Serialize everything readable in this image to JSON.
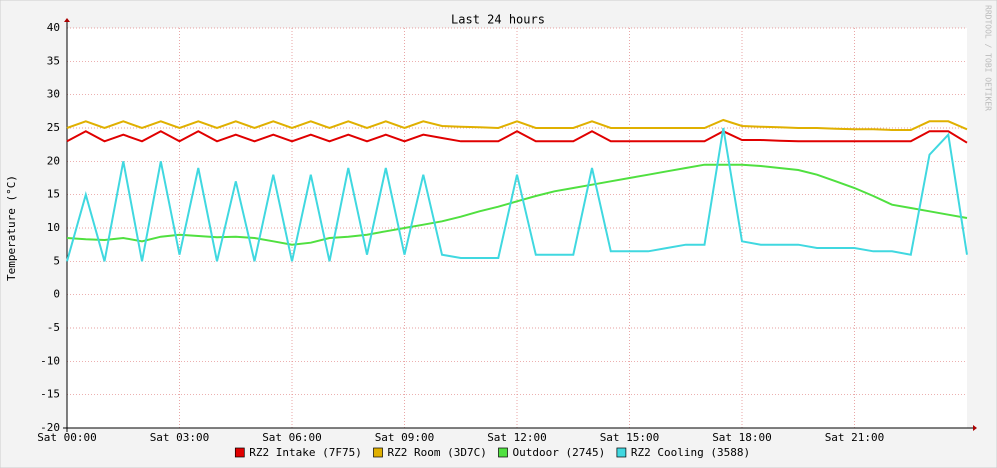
{
  "chart_data": {
    "type": "line",
    "title": "Last 24 hours",
    "y_label": "Temperature (°C)",
    "watermark": "RRDTOOL / TOBI OETIKER",
    "x": [
      0,
      0.5,
      1,
      1.5,
      2,
      2.5,
      3,
      3.5,
      4,
      4.5,
      5,
      5.5,
      6,
      6.5,
      7,
      7.5,
      8,
      8.5,
      9,
      9.5,
      10,
      10.5,
      11,
      11.5,
      12,
      12.5,
      13,
      13.5,
      14,
      14.5,
      15,
      15.5,
      16,
      16.5,
      17,
      17.5,
      18,
      18.5,
      19,
      19.5,
      20,
      20.5,
      21,
      21.5,
      22,
      22.5,
      23,
      23.5,
      24
    ],
    "xlim": [
      0,
      24
    ],
    "xticks": [
      {
        "value": 0,
        "label": "Sat 00:00"
      },
      {
        "value": 3,
        "label": "Sat 03:00"
      },
      {
        "value": 6,
        "label": "Sat 06:00"
      },
      {
        "value": 9,
        "label": "Sat 09:00"
      },
      {
        "value": 12,
        "label": "Sat 12:00"
      },
      {
        "value": 15,
        "label": "Sat 15:00"
      },
      {
        "value": 18,
        "label": "Sat 18:00"
      },
      {
        "value": 21,
        "label": "Sat 21:00"
      }
    ],
    "ylim": [
      -20,
      40
    ],
    "yticks": [
      -20,
      -15,
      -10,
      -5,
      0,
      5,
      10,
      15,
      20,
      25,
      30,
      35,
      40
    ],
    "grid": true,
    "series": [
      {
        "name": "RZ2 Intake (7F75)",
        "color": "#e00000",
        "values": [
          23,
          24.5,
          23,
          24,
          23,
          24.5,
          23,
          24.5,
          23,
          24,
          23,
          24,
          23,
          24,
          23,
          24,
          23,
          24,
          23,
          24,
          23.5,
          23,
          23,
          23,
          24.5,
          23,
          23,
          23,
          24.5,
          23,
          23,
          23,
          23,
          23,
          23,
          24.5,
          23.2,
          23.2,
          23.1,
          23,
          23,
          23,
          23,
          23,
          23,
          23,
          24.5,
          24.5,
          22.8
        ]
      },
      {
        "name": "RZ2 Room (3D7C)",
        "color": "#e0b000",
        "values": [
          25,
          26,
          25,
          26,
          25,
          26,
          25,
          26,
          25,
          26,
          25,
          26,
          25,
          26,
          25,
          26,
          25,
          26,
          25,
          26,
          25.3,
          25.2,
          25.1,
          25,
          26,
          25,
          25,
          25,
          26,
          25,
          25,
          25,
          25,
          25,
          25,
          26.2,
          25.3,
          25.2,
          25.1,
          25,
          25,
          24.9,
          24.8,
          24.8,
          24.7,
          24.7,
          26,
          26,
          24.8
        ]
      },
      {
        "name": "Outdoor (2745)",
        "color": "#50e040",
        "values": [
          8.5,
          8.3,
          8.2,
          8.5,
          8,
          8.7,
          9,
          8.8,
          8.6,
          8.7,
          8.5,
          8,
          7.5,
          7.8,
          8.5,
          8.7,
          9,
          9.5,
          10,
          10.5,
          11,
          11.7,
          12.5,
          13.2,
          14,
          14.8,
          15.5,
          16,
          16.5,
          17,
          17.5,
          18,
          18.5,
          19,
          19.5,
          19.5,
          19.5,
          19.3,
          19,
          18.7,
          18,
          17,
          16,
          14.8,
          13.5,
          13,
          12.5,
          12,
          11.5
        ]
      },
      {
        "name": "RZ2 Cooling (3588)",
        "color": "#40d8e0",
        "values": [
          5,
          15,
          5,
          20,
          5,
          20,
          6,
          19,
          5,
          17,
          5,
          18,
          5,
          18,
          5,
          19,
          6,
          19,
          6,
          18,
          6,
          5.5,
          5.5,
          5.5,
          18,
          6,
          6,
          6,
          19,
          6.5,
          6.5,
          6.5,
          7,
          7.5,
          7.5,
          25,
          8,
          7.5,
          7.5,
          7.5,
          7,
          7,
          7,
          6.5,
          6.5,
          6,
          21,
          24,
          6
        ]
      }
    ]
  }
}
